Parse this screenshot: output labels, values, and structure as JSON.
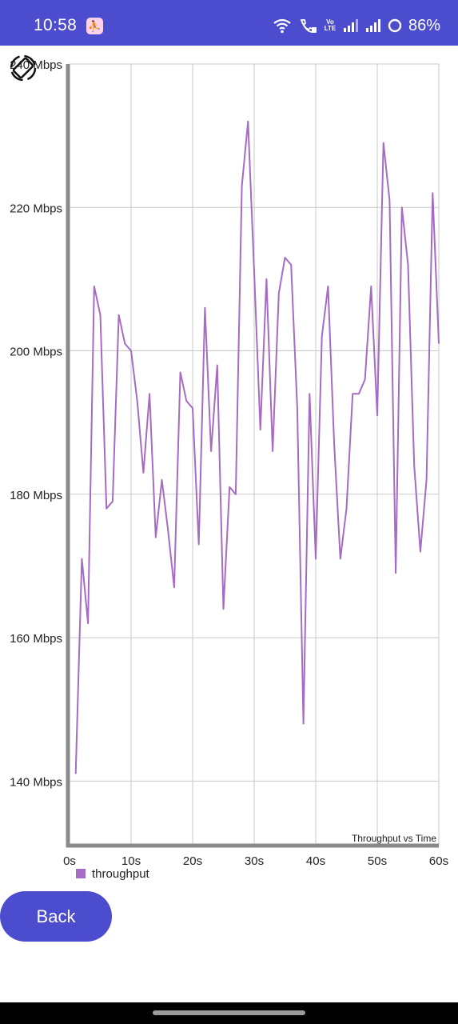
{
  "status_bar": {
    "time": "10:58",
    "battery": "86%",
    "icons": [
      "app-notification-icon",
      "wifi-icon",
      "wifi-call-icon",
      "volte-icon",
      "signal-icon",
      "signal-icon",
      "battery-ring-icon"
    ],
    "volte_label": "Vo\nLTE",
    "background": "#4b4cce"
  },
  "chart_data": {
    "type": "line",
    "title": "Throughput vs Time",
    "xlabel": "",
    "ylabel": "",
    "x_unit": "s",
    "y_unit": "Mbps",
    "xlim": [
      0,
      60
    ],
    "ylim": [
      131,
      240
    ],
    "x_ticks": [
      0,
      10,
      20,
      30,
      40,
      50,
      60
    ],
    "x_tick_labels": [
      "0s",
      "10s",
      "20s",
      "30s",
      "40s",
      "50s",
      "60s"
    ],
    "y_ticks": [
      140,
      160,
      180,
      200,
      220,
      240
    ],
    "y_tick_labels": [
      "140 Mbps",
      "160 Mbps",
      "180 Mbps",
      "200 Mbps",
      "220 Mbps",
      "240 Mbps"
    ],
    "grid": true,
    "legend": "bottom-left",
    "series": [
      {
        "name": "throughput",
        "color": "#a66bc2",
        "x": [
          1,
          2,
          3,
          4,
          5,
          6,
          7,
          8,
          9,
          10,
          11,
          12,
          13,
          14,
          15,
          16,
          17,
          18,
          19,
          20,
          21,
          22,
          23,
          24,
          25,
          26,
          27,
          28,
          29,
          30,
          31,
          32,
          33,
          34,
          35,
          36,
          37,
          38,
          39,
          40,
          41,
          42,
          43,
          44,
          45,
          46,
          47,
          48,
          49,
          50,
          51,
          52,
          53,
          54,
          55,
          56,
          57,
          58,
          59,
          60
        ],
        "values": [
          141,
          171,
          162,
          209,
          205,
          178,
          179,
          205,
          201,
          200,
          193,
          183,
          194,
          174,
          182,
          175,
          167,
          197,
          193,
          192,
          173,
          206,
          186,
          198,
          164,
          181,
          180,
          223,
          232,
          211,
          189,
          210,
          186,
          208,
          213,
          212,
          192,
          148,
          194,
          171,
          202,
          209,
          187,
          171,
          178,
          194,
          194,
          196,
          209,
          191,
          229,
          221,
          169,
          220,
          212,
          184,
          172,
          182,
          222,
          201
        ]
      }
    ]
  },
  "legend": {
    "label": "throughput",
    "color": "#a66bc2"
  },
  "buttons": {
    "back": "Back"
  },
  "colors": {
    "accent": "#4b4cce",
    "axis": "#8a8a8a",
    "grid": "#c8c8c8"
  }
}
